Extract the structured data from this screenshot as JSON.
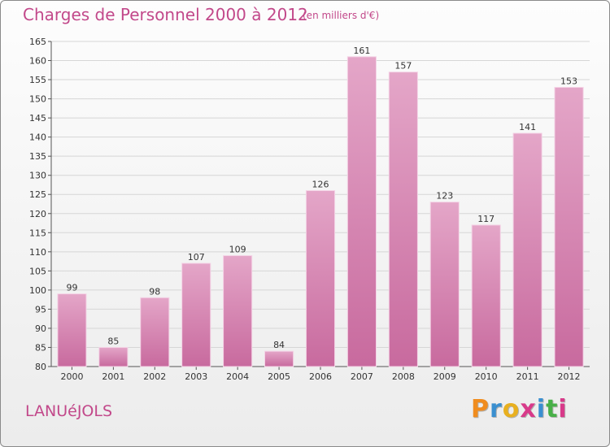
{
  "header": {
    "title": "Charges de Personnel 2000 à 2012",
    "subtitle": "(en milliers d'€)"
  },
  "footer": {
    "commune": "LANUéJOLS",
    "logo_letters": [
      "P",
      "r",
      "o",
      "x",
      "i",
      "t",
      "i"
    ],
    "logo_colors": [
      "#f08c1e",
      "#3a8fd0",
      "#e8b020",
      "#d83a8a",
      "#3a8fd0",
      "#48b048",
      "#d83a8a"
    ]
  },
  "chart_data": {
    "type": "bar",
    "title": "Charges de Personnel 2000 à 2012",
    "subtitle": "(en milliers d'€)",
    "categories": [
      "2000",
      "2001",
      "2002",
      "2003",
      "2004",
      "2005",
      "2006",
      "2007",
      "2008",
      "2009",
      "2010",
      "2011",
      "2012"
    ],
    "values": [
      99,
      85,
      98,
      107,
      109,
      84,
      126,
      161,
      157,
      123,
      117,
      141,
      153
    ],
    "ylim": [
      80,
      165
    ],
    "yticks": [
      80,
      85,
      90,
      95,
      100,
      105,
      110,
      115,
      120,
      125,
      130,
      135,
      140,
      145,
      150,
      155,
      160,
      165
    ],
    "grid": true,
    "bar_color": "#c86a9e",
    "bar_color_light": "#e4a6c8"
  }
}
